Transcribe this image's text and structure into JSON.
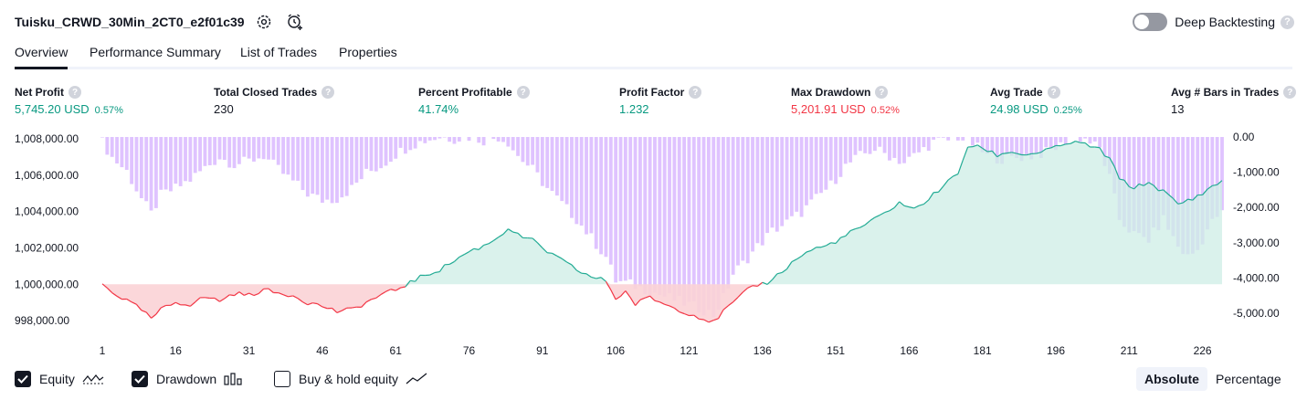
{
  "header": {
    "title": "Tuisku_CRWD_30Min_2CT0_e2f01c39",
    "deep_backtesting_label": "Deep Backtesting",
    "deep_backtesting_enabled": false,
    "help_glyph": "?"
  },
  "tabs": [
    {
      "label": "Overview",
      "active": true
    },
    {
      "label": "Performance Summary",
      "active": false
    },
    {
      "label": "List of Trades",
      "active": false
    },
    {
      "label": "Properties",
      "active": false
    }
  ],
  "metrics": [
    {
      "label": "Net Profit",
      "value": "5,745.20 USD",
      "pct": "0.57%",
      "color": "#089981"
    },
    {
      "label": "Total Closed Trades",
      "value": "230",
      "pct": "",
      "color": "#131722"
    },
    {
      "label": "Percent Profitable",
      "value": "41.74%",
      "pct": "",
      "color": "#089981"
    },
    {
      "label": "Profit Factor",
      "value": "1.232",
      "pct": "",
      "color": "#089981"
    },
    {
      "label": "Max Drawdown",
      "value": "5,201.91 USD",
      "pct": "0.52%",
      "color": "#f23645"
    },
    {
      "label": "Avg Trade",
      "value": "24.98 USD",
      "pct": "0.25%",
      "color": "#089981"
    },
    {
      "label": "Avg # Bars in Trades",
      "value": "13",
      "pct": "",
      "color": "#131722"
    }
  ],
  "legend": {
    "equity": {
      "label": "Equity",
      "checked": true
    },
    "drawdown": {
      "label": "Drawdown",
      "checked": true
    },
    "buy_hold": {
      "label": "Buy & hold equity",
      "checked": false
    },
    "absolute_label": "Absolute",
    "percentage_label": "Percentage",
    "active_mode": "Absolute"
  },
  "chart_data": {
    "type": "area",
    "x_tick_labels": [
      "1",
      "16",
      "31",
      "46",
      "61",
      "76",
      "91",
      "106",
      "121",
      "136",
      "151",
      "166",
      "181",
      "196",
      "211",
      "226"
    ],
    "x_ticks": [
      1,
      16,
      31,
      46,
      61,
      76,
      91,
      106,
      121,
      136,
      151,
      166,
      181,
      196,
      211,
      226
    ],
    "xlim": [
      1,
      230
    ],
    "left_axis_labels": [
      "1,008,000.00",
      "1,006,000.00",
      "1,004,000.00",
      "1,002,000.00",
      "1,000,000.00",
      "998,000.00"
    ],
    "left_axis_values": [
      1008000,
      1006000,
      1004000,
      1002000,
      1000000,
      998000
    ],
    "left_ylim": [
      997300,
      1008100
    ],
    "right_axis_labels": [
      "0.00",
      "-1,000.00",
      "-2,000.00",
      "-3,000.00",
      "-4,000.00",
      "-5,000.00"
    ],
    "right_axis_values": [
      0,
      -1000,
      -2000,
      -3000,
      -4000,
      -5000
    ],
    "right_ylim": [
      -5200,
      0
    ],
    "initial_capital": 1000000,
    "colors": {
      "equity_line_pos": "#22ab94",
      "equity_fill_pos": "#cdeee6",
      "equity_line_neg": "#f23645",
      "equity_fill_neg": "#fbd3d6",
      "drawdown_bar": "#d9b8ff"
    },
    "equity_keypoints": [
      [
        1,
        1000000
      ],
      [
        2,
        999800
      ],
      [
        4,
        999400
      ],
      [
        6,
        999100
      ],
      [
        9,
        998600
      ],
      [
        11,
        998100
      ],
      [
        13,
        998600
      ],
      [
        16,
        999000
      ],
      [
        19,
        998900
      ],
      [
        22,
        999300
      ],
      [
        25,
        999100
      ],
      [
        28,
        999500
      ],
      [
        31,
        999400
      ],
      [
        34,
        999700
      ],
      [
        37,
        999500
      ],
      [
        40,
        999400
      ],
      [
        43,
        999000
      ],
      [
        46,
        998800
      ],
      [
        49,
        998500
      ],
      [
        52,
        998600
      ],
      [
        55,
        999000
      ],
      [
        58,
        999400
      ],
      [
        61,
        999700
      ],
      [
        64,
        1000100
      ],
      [
        67,
        1000500
      ],
      [
        70,
        1000800
      ],
      [
        73,
        1001300
      ],
      [
        76,
        1001800
      ],
      [
        79,
        1002100
      ],
      [
        82,
        1002600
      ],
      [
        84,
        1003100
      ],
      [
        86,
        1002700
      ],
      [
        89,
        1002400
      ],
      [
        92,
        1001800
      ],
      [
        95,
        1001300
      ],
      [
        98,
        1000800
      ],
      [
        101,
        1000400
      ],
      [
        104,
        1000200
      ],
      [
        106,
        999200
      ],
      [
        108,
        999600
      ],
      [
        110,
        998900
      ],
      [
        113,
        999300
      ],
      [
        116,
        998900
      ],
      [
        119,
        998600
      ],
      [
        122,
        998300
      ],
      [
        124,
        998100
      ],
      [
        126,
        997900
      ],
      [
        128,
        998500
      ],
      [
        131,
        999200
      ],
      [
        134,
        999900
      ],
      [
        137,
        1000100
      ],
      [
        140,
        1000700
      ],
      [
        143,
        1001400
      ],
      [
        146,
        1001900
      ],
      [
        149,
        1002100
      ],
      [
        152,
        1002500
      ],
      [
        155,
        1003000
      ],
      [
        158,
        1003400
      ],
      [
        161,
        1003900
      ],
      [
        164,
        1004500
      ],
      [
        167,
        1004100
      ],
      [
        170,
        1004700
      ],
      [
        173,
        1005400
      ],
      [
        176,
        1006100
      ],
      [
        178,
        1007600
      ],
      [
        181,
        1007500
      ],
      [
        184,
        1007100
      ],
      [
        187,
        1007300
      ],
      [
        190,
        1007100
      ],
      [
        193,
        1007300
      ],
      [
        196,
        1007500
      ],
      [
        199,
        1007800
      ],
      [
        202,
        1007700
      ],
      [
        205,
        1007400
      ],
      [
        207,
        1006900
      ],
      [
        209,
        1005800
      ],
      [
        212,
        1005300
      ],
      [
        215,
        1005600
      ],
      [
        218,
        1005100
      ],
      [
        221,
        1004400
      ],
      [
        224,
        1004700
      ],
      [
        227,
        1005200
      ],
      [
        229,
        1005500
      ],
      [
        230,
        1005745
      ]
    ],
    "drawdown_keypoints": [
      [
        1,
        -150
      ],
      [
        3,
        -600
      ],
      [
        6,
        -1000
      ],
      [
        9,
        -1800
      ],
      [
        11,
        -2250
      ],
      [
        13,
        -1700
      ],
      [
        16,
        -1500
      ],
      [
        19,
        -1250
      ],
      [
        22,
        -900
      ],
      [
        25,
        -600
      ],
      [
        28,
        -800
      ],
      [
        31,
        -700
      ],
      [
        34,
        -550
      ],
      [
        37,
        -950
      ],
      [
        40,
        -1300
      ],
      [
        43,
        -1650
      ],
      [
        46,
        -1850
      ],
      [
        49,
        -1800
      ],
      [
        52,
        -1500
      ],
      [
        55,
        -1050
      ],
      [
        58,
        -850
      ],
      [
        61,
        -500
      ],
      [
        64,
        -250
      ],
      [
        67,
        -100
      ],
      [
        70,
        0
      ],
      [
        73,
        -50
      ],
      [
        76,
        0
      ],
      [
        79,
        -100
      ],
      [
        82,
        0
      ],
      [
        84,
        -150
      ],
      [
        86,
        -550
      ],
      [
        89,
        -950
      ],
      [
        92,
        -1500
      ],
      [
        95,
        -1950
      ],
      [
        98,
        -2400
      ],
      [
        101,
        -2950
      ],
      [
        104,
        -3500
      ],
      [
        106,
        -4200
      ],
      [
        109,
        -4300
      ],
      [
        112,
        -4450
      ],
      [
        115,
        -4600
      ],
      [
        118,
        -4750
      ],
      [
        121,
        -4900
      ],
      [
        124,
        -5050
      ],
      [
        126,
        -5200
      ],
      [
        128,
        -4700
      ],
      [
        130,
        -4000
      ],
      [
        132,
        -3700
      ],
      [
        135,
        -3200
      ],
      [
        138,
        -2750
      ],
      [
        141,
        -2500
      ],
      [
        144,
        -2200
      ],
      [
        147,
        -1800
      ],
      [
        150,
        -1400
      ],
      [
        153,
        -850
      ],
      [
        156,
        -550
      ],
      [
        159,
        -350
      ],
      [
        162,
        -550
      ],
      [
        165,
        -750
      ],
      [
        168,
        -450
      ],
      [
        171,
        -150
      ],
      [
        174,
        -100
      ],
      [
        176,
        0
      ],
      [
        179,
        -200
      ],
      [
        182,
        -550
      ],
      [
        185,
        -650
      ],
      [
        188,
        -600
      ],
      [
        191,
        -550
      ],
      [
        194,
        -450
      ],
      [
        197,
        -250
      ],
      [
        199,
        0
      ],
      [
        202,
        -50
      ],
      [
        205,
        -350
      ],
      [
        207,
        -1200
      ],
      [
        209,
        -2400
      ],
      [
        212,
        -2850
      ],
      [
        215,
        -3000
      ],
      [
        218,
        -2400
      ],
      [
        221,
        -3200
      ],
      [
        223,
        -3500
      ],
      [
        225,
        -3300
      ],
      [
        227,
        -2700
      ],
      [
        229,
        -2300
      ],
      [
        230,
        -2250
      ]
    ]
  }
}
